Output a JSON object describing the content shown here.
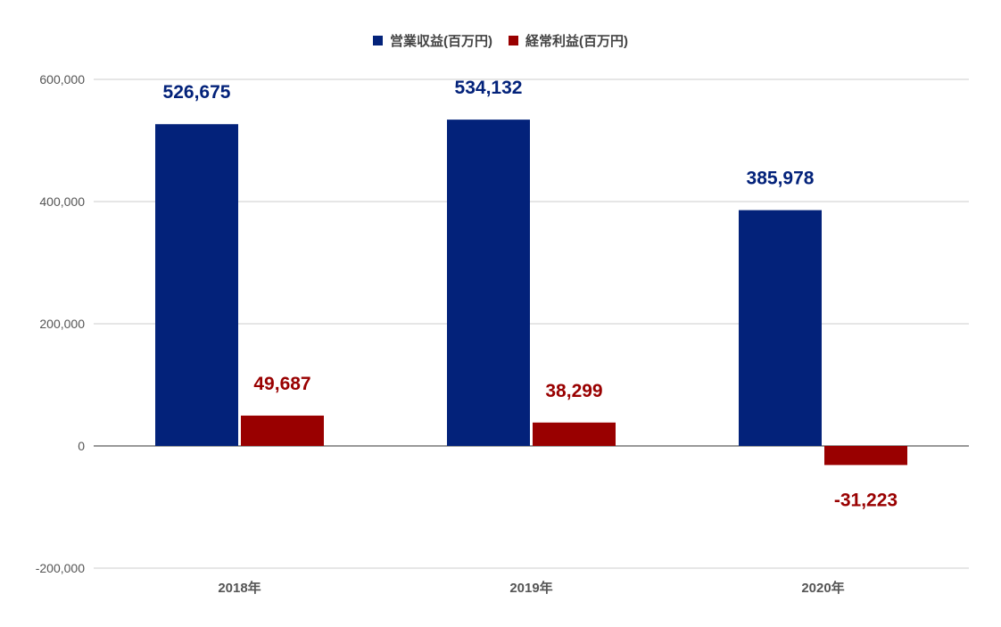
{
  "chart_data": {
    "type": "bar",
    "categories": [
      "2018年",
      "2019年",
      "2020年"
    ],
    "series": [
      {
        "name": "営業収益(百万円)",
        "values": [
          526675,
          534132,
          385978
        ],
        "labels": [
          "526,675",
          "534,132",
          "385,978"
        ],
        "color": "#03227a"
      },
      {
        "name": "経常利益(百万円)",
        "values": [
          49687,
          38299,
          -31223
        ],
        "labels": [
          "49,687",
          "38,299",
          "-31,223"
        ],
        "color": "#990000"
      }
    ],
    "y_ticks": [
      600000,
      400000,
      200000,
      0,
      -200000
    ],
    "y_tick_labels": [
      "600,000",
      "400,000",
      "200,000",
      "0",
      "-200,000"
    ],
    "ylim": [
      -200000,
      600000
    ],
    "grid": true,
    "legend_position": "top-center",
    "title": "",
    "xlabel": "",
    "ylabel": ""
  }
}
